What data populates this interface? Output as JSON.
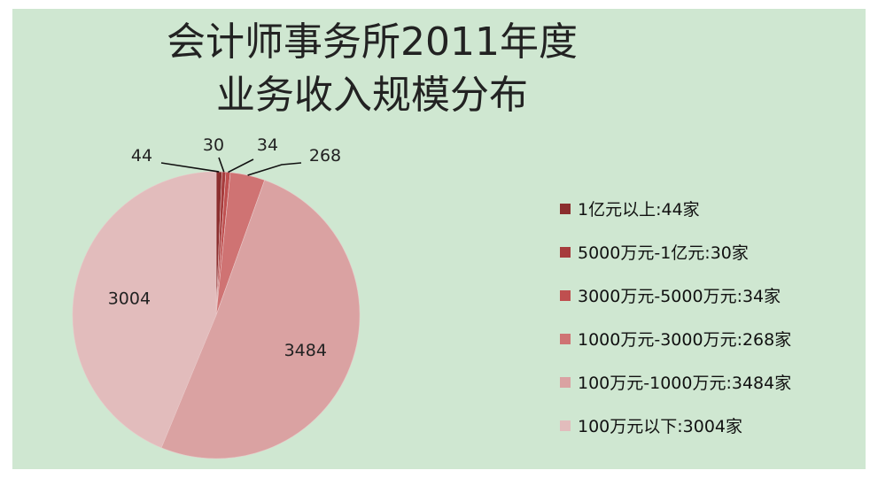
{
  "chart_data": {
    "type": "pie",
    "title_line1": "会计师事务所2011年度",
    "title_line2": "业务收入规模分布",
    "categories": [
      "1亿元以上",
      "5000万元-1亿元",
      "3000万元-5000万元",
      "1000万元-3000万元",
      "100万元-1000万元",
      "100万元以下"
    ],
    "values": [
      44,
      30,
      34,
      268,
      3484,
      3004
    ],
    "data_labels": [
      "44",
      "30",
      "34",
      "268",
      "3484",
      "3004"
    ],
    "legend": [
      "1亿元以上:44家",
      "5000万元-1亿元:30家",
      "3000万元-5000万元:34家",
      "1000万元-3000万元:268家",
      "100万元-1000万元:3484家",
      "100万元以下:3004家"
    ],
    "colors": [
      "#8b2e2e",
      "#a63c3c",
      "#bf4f4f",
      "#cf7373",
      "#daa2a2",
      "#e2bcbc"
    ],
    "legend_position": "right"
  }
}
